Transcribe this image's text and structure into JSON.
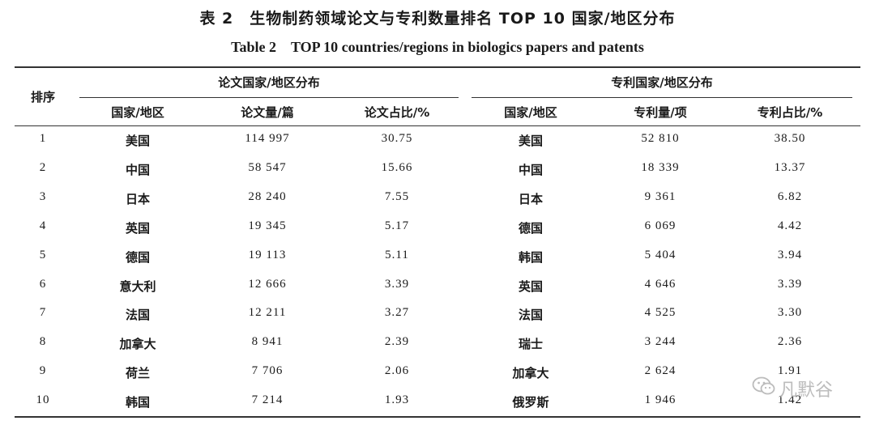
{
  "title_cn": "表 2　生物制药领域论文与专利数量排名 TOP 10 国家/地区分布",
  "title_en": "Table 2　TOP 10 countries/regions in biologics papers and patents",
  "headers": {
    "rank": "排序",
    "paper_group": "论文国家/地区分布",
    "patent_group": "专利国家/地区分布",
    "paper_country": "国家/地区",
    "paper_count": "论文量/篇",
    "paper_share": "论文占比/%",
    "patent_country": "国家/地区",
    "patent_count": "专利量/项",
    "patent_share": "专利占比/%"
  },
  "rows": [
    {
      "rank": "1",
      "paper_country": "美国",
      "paper_count": "114 997",
      "paper_share": "30.75",
      "patent_country": "美国",
      "patent_count": "52 810",
      "patent_share": "38.50"
    },
    {
      "rank": "2",
      "paper_country": "中国",
      "paper_count": "58 547",
      "paper_share": "15.66",
      "patent_country": "中国",
      "patent_count": "18 339",
      "patent_share": "13.37"
    },
    {
      "rank": "3",
      "paper_country": "日本",
      "paper_count": "28 240",
      "paper_share": "7.55",
      "patent_country": "日本",
      "patent_count": "9 361",
      "patent_share": "6.82"
    },
    {
      "rank": "4",
      "paper_country": "英国",
      "paper_count": "19 345",
      "paper_share": "5.17",
      "patent_country": "德国",
      "patent_count": "6 069",
      "patent_share": "4.42"
    },
    {
      "rank": "5",
      "paper_country": "德国",
      "paper_count": "19 113",
      "paper_share": "5.11",
      "patent_country": "韩国",
      "patent_count": "5 404",
      "patent_share": "3.94"
    },
    {
      "rank": "6",
      "paper_country": "意大利",
      "paper_count": "12 666",
      "paper_share": "3.39",
      "patent_country": "英国",
      "patent_count": "4 646",
      "patent_share": "3.39"
    },
    {
      "rank": "7",
      "paper_country": "法国",
      "paper_count": "12 211",
      "paper_share": "3.27",
      "patent_country": "法国",
      "patent_count": "4 525",
      "patent_share": "3.30"
    },
    {
      "rank": "8",
      "paper_country": "加拿大",
      "paper_count": "8 941",
      "paper_share": "2.39",
      "patent_country": "瑞士",
      "patent_count": "3 244",
      "patent_share": "2.36"
    },
    {
      "rank": "9",
      "paper_country": "荷兰",
      "paper_count": "7 706",
      "paper_share": "2.06",
      "patent_country": "加拿大",
      "patent_count": "2 624",
      "patent_share": "1.91"
    },
    {
      "rank": "10",
      "paper_country": "韩国",
      "paper_count": "7 214",
      "paper_share": "1.93",
      "patent_country": "俄罗斯",
      "patent_count": "1 946",
      "patent_share": "1.42"
    }
  ],
  "watermark": {
    "icon": "wechat-icon",
    "text": "凡默谷"
  }
}
